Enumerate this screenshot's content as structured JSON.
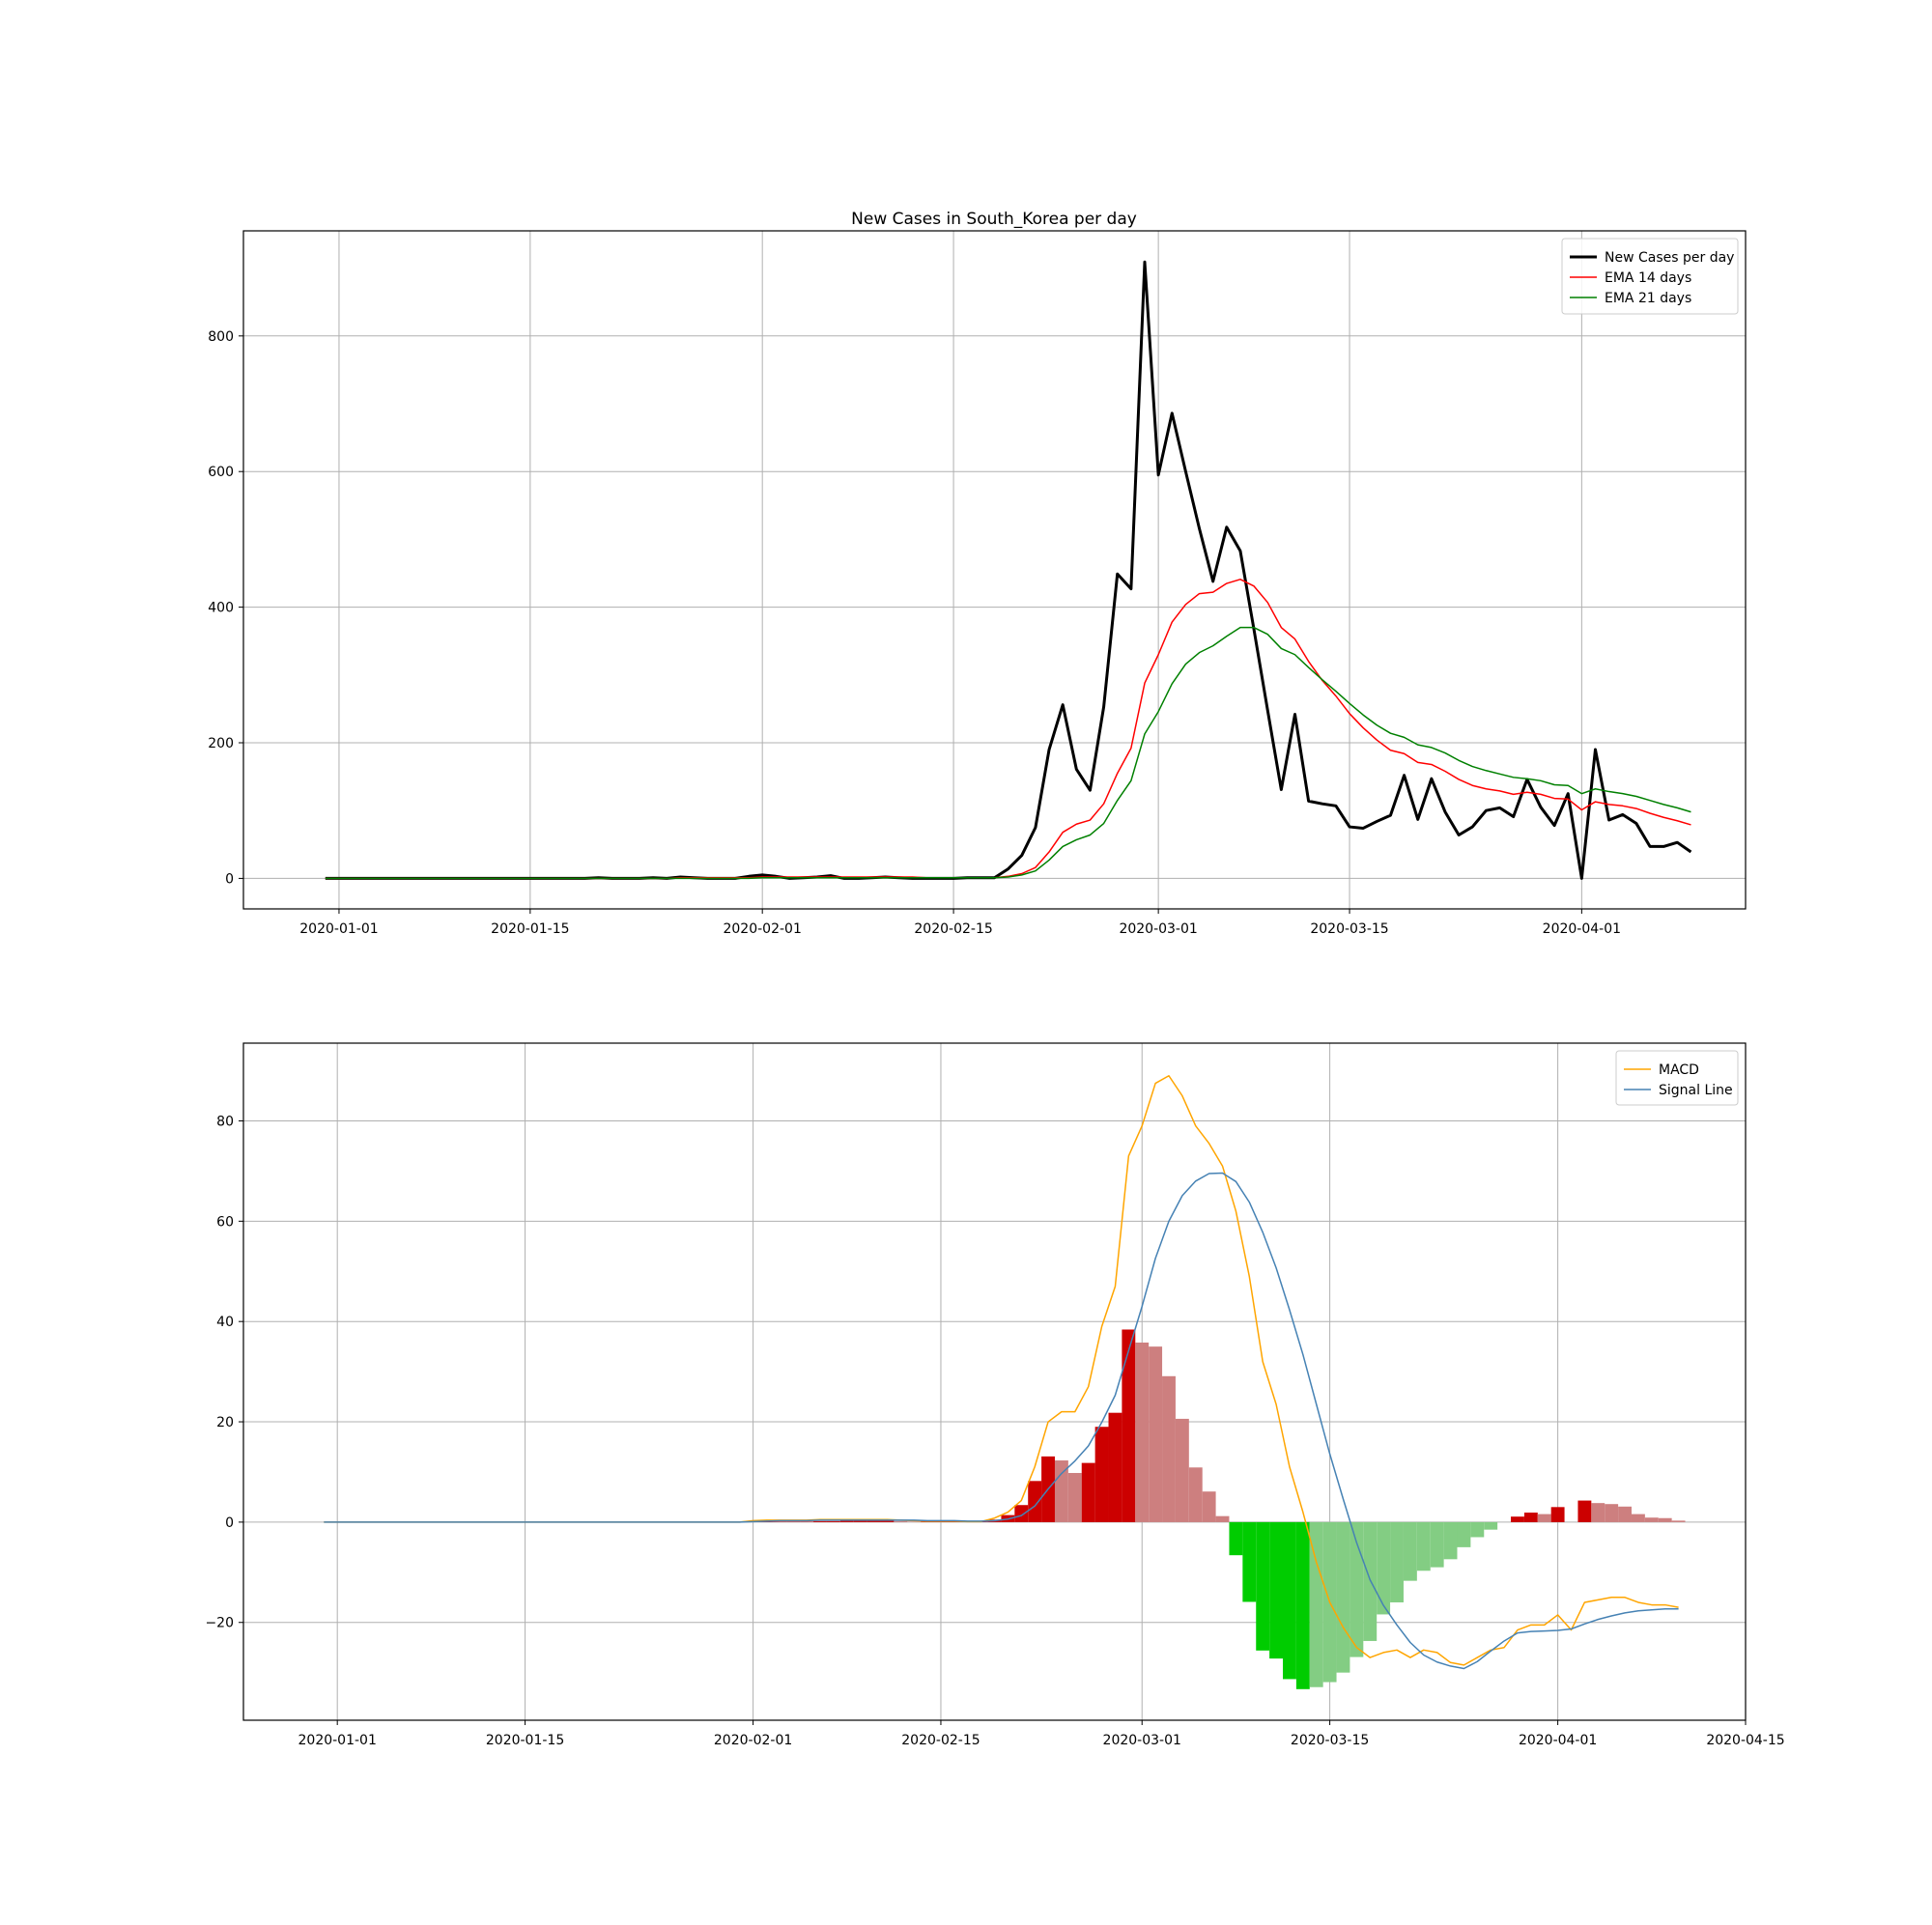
{
  "chart_data": [
    {
      "type": "line",
      "title": "New Cases in South_Korea per day",
      "xlabel": "",
      "ylabel": "",
      "x_start": "2019-12-31",
      "x_ticks": [
        "2020-01-01",
        "2020-01-15",
        "2020-02-01",
        "2020-02-15",
        "2020-03-01",
        "2020-03-15",
        "2020-04-01"
      ],
      "xlim": [
        "2019-12-25",
        "2020-04-13"
      ],
      "ylim": [
        -45,
        955
      ],
      "y_ticks": [
        0,
        200,
        400,
        600,
        800
      ],
      "grid": true,
      "legend": "top-right",
      "series": [
        {
          "name": "New Cases per day",
          "color": "#000000",
          "values": [
            0,
            0,
            0,
            0,
            0,
            0,
            0,
            0,
            0,
            0,
            0,
            0,
            0,
            0,
            0,
            0,
            0,
            0,
            0,
            0,
            1,
            0,
            0,
            0,
            1,
            0,
            2,
            1,
            0,
            0,
            0,
            3,
            5,
            3,
            0,
            1,
            2,
            4,
            0,
            0,
            1,
            2,
            1,
            0,
            0,
            0,
            0,
            1,
            1,
            1,
            14,
            34,
            75,
            190,
            256,
            161,
            130,
            253,
            449,
            427,
            909,
            595,
            686,
            600,
            516,
            438,
            518,
            483,
            367,
            248,
            131,
            242,
            114,
            110,
            107,
            76,
            74,
            84,
            93,
            152,
            87,
            147,
            98,
            64,
            76,
            100,
            104,
            91,
            146,
            105,
            78,
            125,
            0,
            190,
            86,
            94,
            81,
            47,
            47,
            53,
            39
          ]
        },
        {
          "name": "EMA 14 days",
          "color": "#ff0000",
          "values": [
            0,
            0,
            0,
            0,
            0,
            0,
            0,
            0,
            0,
            0,
            0,
            0,
            0,
            0,
            0,
            0,
            0,
            0,
            0,
            0,
            0,
            0,
            0,
            0,
            0,
            0,
            1,
            1,
            1,
            1,
            1,
            1,
            2,
            2,
            2,
            2,
            2,
            2,
            2,
            2,
            2,
            2,
            2,
            2,
            1,
            1,
            1,
            1,
            1,
            1,
            3,
            7,
            16,
            39,
            68,
            80,
            86,
            110,
            155,
            192,
            288,
            330,
            378,
            404,
            420,
            422,
            435,
            441,
            431,
            407,
            370,
            353,
            320,
            292,
            269,
            243,
            222,
            204,
            189,
            184,
            171,
            168,
            158,
            146,
            137,
            132,
            129,
            124,
            127,
            124,
            118,
            117,
            101,
            113,
            109,
            107,
            103,
            96,
            90,
            85,
            79
          ]
        },
        {
          "name": "EMA 21 days",
          "color": "#008000",
          "values": [
            0,
            0,
            0,
            0,
            0,
            0,
            0,
            0,
            0,
            0,
            0,
            0,
            0,
            0,
            0,
            0,
            0,
            0,
            0,
            0,
            0,
            0,
            0,
            0,
            0,
            0,
            0,
            0,
            0,
            0,
            0,
            0,
            1,
            1,
            1,
            1,
            1,
            1,
            1,
            1,
            1,
            1,
            1,
            1,
            1,
            1,
            1,
            1,
            1,
            1,
            2,
            5,
            11,
            27,
            47,
            57,
            64,
            81,
            115,
            144,
            213,
            246,
            287,
            316,
            333,
            343,
            357,
            370,
            370,
            360,
            339,
            330,
            311,
            293,
            276,
            258,
            241,
            226,
            214,
            208,
            197,
            193,
            185,
            174,
            165,
            159,
            154,
            149,
            147,
            144,
            138,
            137,
            125,
            132,
            128,
            125,
            121,
            115,
            109,
            104,
            98
          ]
        }
      ]
    },
    {
      "type": "line",
      "title": "",
      "xlabel": "",
      "ylabel": "",
      "x_start": "2019-12-31",
      "x_ticks": [
        "2020-01-01",
        "2020-01-15",
        "2020-02-01",
        "2020-02-15",
        "2020-03-01",
        "2020-03-15",
        "2020-04-01",
        "2020-04-15"
      ],
      "xlim": [
        "2019-12-25",
        "2020-04-15"
      ],
      "ylim": [
        -39.5,
        95.5
      ],
      "y_ticks": [
        -20,
        0,
        20,
        40,
        60,
        80
      ],
      "y_tick_labels": [
        "−20",
        "0",
        "20",
        "40",
        "60",
        "80"
      ],
      "grid": true,
      "legend": "top-right",
      "series": [
        {
          "name": "MACD",
          "color": "#ffa500",
          "values": [
            0,
            0,
            0,
            0,
            0,
            0,
            0,
            0,
            0,
            0,
            0,
            0,
            0,
            0,
            0,
            0,
            0,
            0,
            0,
            0,
            0,
            0,
            0,
            0,
            0,
            0,
            0,
            0,
            0,
            0,
            0,
            0,
            0.3,
            0.4,
            0.4,
            0.4,
            0.4,
            0.5,
            0.5,
            0.5,
            0.5,
            0.5,
            0.5,
            0.4,
            0.3,
            0.2,
            0.2,
            0.2,
            0.1,
            0.1,
            0.8,
            2.0,
            4.3,
            11,
            20,
            22,
            22,
            27,
            39,
            47,
            73,
            79,
            87.5,
            89,
            85,
            79,
            75.5,
            71,
            62,
            49,
            32,
            23.5,
            11,
            2,
            -8,
            -16,
            -21,
            -25,
            -27,
            -26,
            -25.5,
            -27,
            -25.5,
            -26,
            -28,
            -28.5,
            -27,
            -25.5,
            -25,
            -21.5,
            -20.5,
            -20.5,
            -18.5,
            -21.5,
            -16,
            -15.5,
            -15,
            -15,
            -16,
            -16.5,
            -16.5,
            -17
          ]
        },
        {
          "name": "Signal Line",
          "color": "#4682b4",
          "values": [
            0,
            0,
            0,
            0,
            0,
            0,
            0,
            0,
            0,
            0,
            0,
            0,
            0,
            0,
            0,
            0,
            0,
            0,
            0,
            0,
            0,
            0,
            0,
            0,
            0,
            0,
            0,
            0,
            0,
            0,
            0,
            0,
            0.1,
            0.2,
            0.3,
            0.3,
            0.3,
            0.4,
            0.4,
            0.4,
            0.4,
            0.4,
            0.4,
            0.4,
            0.4,
            0.3,
            0.3,
            0.3,
            0.2,
            0.2,
            0.3,
            0.6,
            1.3,
            3.2,
            6.6,
            9.7,
            12.2,
            15.2,
            19.9,
            25.3,
            34.2,
            43.0,
            52.6,
            60.0,
            65.1,
            68.0,
            69.5,
            69.6,
            67.9,
            63.8,
            57.8,
            50.7,
            42.3,
            33.4,
            23.5,
            13.6,
            4.6,
            -4.1,
            -11.5,
            -16.6,
            -20.5,
            -24.0,
            -26.5,
            -27.9,
            -28.7,
            -29.2,
            -27.8,
            -25.7,
            -23.7,
            -22.1,
            -21.8,
            -21.7,
            -21.6,
            -21.3,
            -20.3,
            -19.4,
            -18.7,
            -18.1,
            -17.7,
            -17.5,
            -17.3,
            -17.3
          ]
        }
      ],
      "histogram": {
        "pos_rising_color": "#cc0000",
        "pos_falling_color": "#cd7f7f",
        "neg_falling_color": "#00cc00",
        "neg_rising_color": "#83cd83",
        "values": [
          0,
          0,
          0,
          0,
          0,
          0,
          0,
          0,
          0,
          0,
          0,
          0,
          0,
          0,
          0,
          0,
          0,
          0,
          0,
          0,
          0,
          0,
          0,
          0,
          0,
          0,
          0,
          0,
          0,
          0,
          0,
          0,
          0.1,
          0.1,
          0.1,
          0.1,
          0.1,
          0.2,
          0.2,
          0.3,
          0.3,
          0.3,
          0.3,
          0.2,
          0.1,
          0.1,
          0.1,
          0.1,
          0.1,
          0.1,
          0.5,
          1.4,
          3.4,
          8.2,
          13.1,
          12.3,
          9.8,
          11.8,
          19.0,
          21.8,
          38.4,
          35.8,
          35.0,
          29.1,
          20.6,
          10.9,
          6.1,
          1.2,
          -6.6,
          -15.9,
          -25.6,
          -27.2,
          -31.3,
          -33.3,
          -32.9,
          -31.9,
          -30.0,
          -26.9,
          -23.7,
          -18.4,
          -16.0,
          -11.7,
          -9.7,
          -9.0,
          -7.4,
          -5.0,
          -3.0,
          -1.5,
          0,
          1.1,
          1.9,
          1.6,
          3.0,
          0,
          4.3,
          3.8,
          3.6,
          3.1,
          1.6,
          0.9,
          0.8,
          0.3
        ]
      }
    }
  ]
}
